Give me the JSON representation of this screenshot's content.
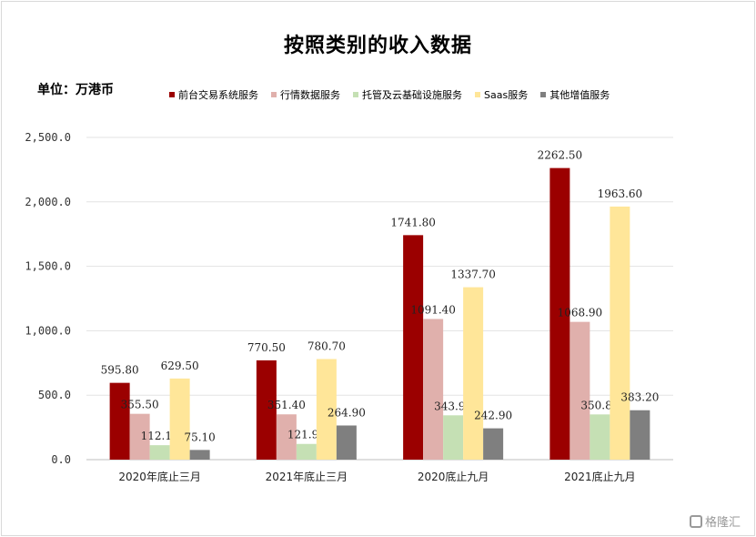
{
  "chart_data": {
    "type": "bar",
    "title": "按照类别的收入数据",
    "unit_label": "单位：万港币",
    "categories": [
      "2020年底止三月",
      "2021年底止三月",
      "2020底止九月",
      "2021底止九月"
    ],
    "series": [
      {
        "name": "前台交易系统服务",
        "color": "#9b0000",
        "values": [
          595.8,
          770.5,
          1741.8,
          2262.5
        ],
        "labels": [
          "595.80",
          "770.50",
          "1741.80",
          "2262.50"
        ]
      },
      {
        "name": "行情数据服务",
        "color": "#e0b0ac",
        "values": [
          355.5,
          351.4,
          1091.4,
          1068.9
        ],
        "labels": [
          "355.50",
          "351.40",
          "1091.40",
          "1068.90"
        ]
      },
      {
        "name": "托管及云基础设施服务",
        "color": "#c5e0b4",
        "values": [
          112.1,
          121.9,
          343.9,
          350.8
        ],
        "labels": [
          "112.10",
          "121.90",
          "343.90",
          "350.80"
        ]
      },
      {
        "name": "Saas服务",
        "color": "#ffe699",
        "values": [
          629.5,
          780.7,
          1337.7,
          1963.6
        ],
        "labels": [
          "629.50",
          "780.70",
          "1337.70",
          "1963.60"
        ]
      },
      {
        "name": "其他增值服务",
        "color": "#7f7f7f",
        "values": [
          75.1,
          264.9,
          242.9,
          383.2
        ],
        "labels": [
          "75.10",
          "264.90",
          "242.90",
          "383.20"
        ]
      }
    ],
    "ylim": [
      0,
      2500
    ],
    "yticks": [
      0,
      500,
      1000,
      1500,
      2000,
      2500
    ],
    "ytick_labels": [
      "0.0",
      "500.0",
      "1,000.0",
      "1,500.0",
      "2,000.0",
      "2,500.0"
    ],
    "grid": true,
    "legend_position": "top"
  },
  "watermark": {
    "text": "格隆汇"
  }
}
